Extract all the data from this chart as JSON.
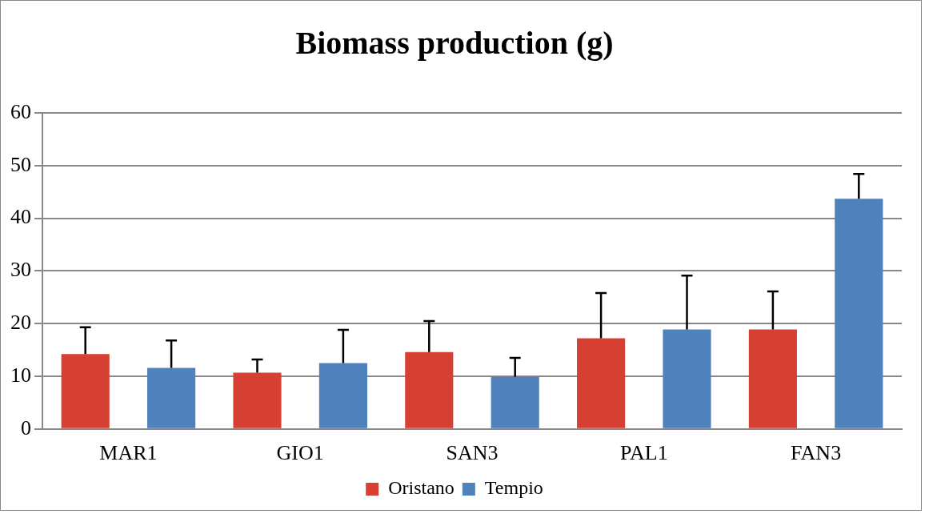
{
  "chart_data": {
    "type": "bar",
    "title": "Biomass production (g)",
    "categories": [
      "MAR1",
      "GIO1",
      "SAN3",
      "PAL1",
      "FAN3"
    ],
    "series": [
      {
        "name": "Oristano",
        "color": "#d64032",
        "values": [
          14.2,
          10.7,
          14.6,
          17.2,
          18.9
        ],
        "errors": [
          [
            14.2,
            19.3
          ],
          [
            10.7,
            13.2
          ],
          [
            14.6,
            20.5
          ],
          [
            17.2,
            25.8
          ],
          [
            18.9,
            26.1
          ]
        ]
      },
      {
        "name": "Tempio",
        "color": "#4f81bd",
        "values": [
          11.6,
          12.5,
          9.9,
          18.9,
          43.7
        ],
        "errors": [
          [
            11.6,
            16.8
          ],
          [
            12.5,
            18.8
          ],
          [
            9.9,
            13.5
          ],
          [
            18.9,
            29.1
          ],
          [
            43.7,
            48.4
          ]
        ]
      }
    ],
    "ylim": [
      0,
      60
    ],
    "yticks": [
      0,
      10,
      20,
      30,
      40,
      50,
      60
    ],
    "grid": "y",
    "legend": "bottom"
  }
}
